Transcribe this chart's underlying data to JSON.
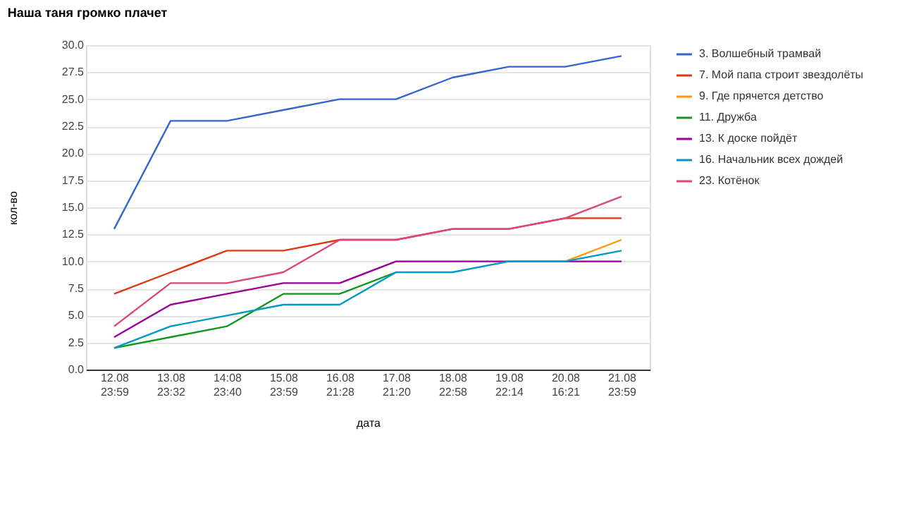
{
  "chart_data": {
    "type": "line",
    "title": "Наша таня громко плачет",
    "xlabel": "дата",
    "ylabel": "кол-во",
    "categories": [
      "12.08\n23:59",
      "13.08\n23:32",
      "14:08\n23:40",
      "15.08\n23:59",
      "16.08\n21:28",
      "17.08\n21:20",
      "18.08\n22:58",
      "19.08\n22:14",
      "20.08\n16:21",
      "21.08\n23:59"
    ],
    "series": [
      {
        "name": "3. Волшебный трамвай",
        "color": "#3366cc",
        "values": [
          13,
          23,
          23,
          24,
          25,
          25,
          27,
          28,
          28,
          29
        ]
      },
      {
        "name": "7. Мой папа строит звездолёты",
        "color": "#dc3912",
        "values": [
          7,
          9,
          11,
          11,
          12,
          12,
          13,
          13,
          14,
          14
        ]
      },
      {
        "name": "9. Где прячется детство",
        "color": "#ff9900",
        "values": [
          null,
          null,
          null,
          null,
          null,
          null,
          null,
          null,
          10,
          12
        ]
      },
      {
        "name": "11. Дружба",
        "color": "#109618",
        "values": [
          2,
          3,
          4,
          7,
          7,
          9,
          null,
          null,
          null,
          null
        ]
      },
      {
        "name": "13. К доске пойдёт",
        "color": "#990099",
        "values": [
          3,
          6,
          7,
          8,
          8,
          10,
          10,
          10,
          10,
          10
        ]
      },
      {
        "name": "16. Начальник всех дождей",
        "color": "#0099c6",
        "values": [
          2,
          4,
          5,
          6,
          6,
          9,
          9,
          10,
          10,
          11
        ]
      },
      {
        "name": "23. Котёнок",
        "color": "#dd4477",
        "values": [
          4,
          8,
          8,
          9,
          12,
          12,
          13,
          13,
          14,
          16
        ]
      }
    ],
    "ylim": [
      0,
      30
    ],
    "yticks": [
      {
        "value": 0,
        "label": "0.0"
      },
      {
        "value": 2.5,
        "label": "2.5"
      },
      {
        "value": 5,
        "label": "5.0"
      },
      {
        "value": 7.5,
        "label": "7.5"
      },
      {
        "value": 10,
        "label": "10.0"
      },
      {
        "value": 12.5,
        "label": "12.5"
      },
      {
        "value": 15,
        "label": "15.0"
      },
      {
        "value": 17.5,
        "label": "17.5"
      },
      {
        "value": 20,
        "label": "20.0"
      },
      {
        "value": 22.5,
        "label": "22.5"
      },
      {
        "value": 25,
        "label": "25.0"
      },
      {
        "value": 27.5,
        "label": "27.5"
      },
      {
        "value": 30,
        "label": "30.0"
      }
    ],
    "grid": "y",
    "legend": "right",
    "line_style": "solid",
    "marker": "none"
  }
}
